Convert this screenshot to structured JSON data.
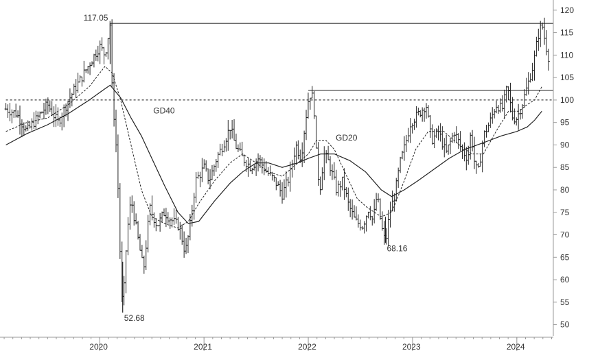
{
  "chart_data": {
    "type": "line",
    "subtype": "ohlc-bars-with-moving-averages",
    "title": "",
    "xlabel": "",
    "ylabel": "",
    "x_axis": {
      "ticks": [
        "2020",
        "2021",
        "2022",
        "2023",
        "2024"
      ],
      "range": [
        "2019.1",
        "2024.4"
      ]
    },
    "y_axis": {
      "side": "right",
      "ylim": [
        47.5,
        121.5
      ],
      "ticks": [
        50,
        55,
        60,
        65,
        70,
        75,
        80,
        85,
        90,
        95,
        100,
        105,
        110,
        115,
        120
      ]
    },
    "grid": false,
    "legend": "none",
    "colors": {
      "price": "#222222",
      "ma": "#222222",
      "axis": "#999999",
      "text": "#333333"
    },
    "price_path": [
      [
        2019.1,
        98
      ],
      [
        2019.2,
        97
      ],
      [
        2019.3,
        93
      ],
      [
        2019.4,
        96
      ],
      [
        2019.5,
        99
      ],
      [
        2019.6,
        95
      ],
      [
        2019.7,
        100
      ],
      [
        2019.8,
        104
      ],
      [
        2019.9,
        108
      ],
      [
        2020.0,
        112
      ],
      [
        2020.05,
        110
      ],
      [
        2020.1,
        117.05
      ],
      [
        2020.12,
        101
      ],
      [
        2020.15,
        93
      ],
      [
        2020.18,
        78
      ],
      [
        2020.2,
        62
      ],
      [
        2020.22,
        52.68
      ],
      [
        2020.26,
        70
      ],
      [
        2020.3,
        78
      ],
      [
        2020.36,
        70
      ],
      [
        2020.42,
        62
      ],
      [
        2020.48,
        76
      ],
      [
        2020.55,
        72
      ],
      [
        2020.62,
        75
      ],
      [
        2020.7,
        73
      ],
      [
        2020.76,
        72
      ],
      [
        2020.82,
        66
      ],
      [
        2020.86,
        71
      ],
      [
        2020.92,
        82
      ],
      [
        2021.0,
        85
      ],
      [
        2021.05,
        82
      ],
      [
        2021.12,
        87
      ],
      [
        2021.2,
        91
      ],
      [
        2021.25,
        94
      ],
      [
        2021.3,
        90
      ],
      [
        2021.37,
        87
      ],
      [
        2021.45,
        85
      ],
      [
        2021.52,
        87
      ],
      [
        2021.6,
        84
      ],
      [
        2021.68,
        82
      ],
      [
        2021.75,
        79
      ],
      [
        2021.82,
        83
      ],
      [
        2021.88,
        90
      ],
      [
        2021.93,
        87
      ],
      [
        2021.97,
        95
      ],
      [
        2022.0,
        100
      ],
      [
        2022.03,
        102
      ],
      [
        2022.06,
        97
      ],
      [
        2022.08,
        86
      ],
      [
        2022.11,
        80
      ],
      [
        2022.15,
        88
      ],
      [
        2022.2,
        86
      ],
      [
        2022.27,
        80
      ],
      [
        2022.33,
        82
      ],
      [
        2022.38,
        77
      ],
      [
        2022.45,
        73
      ],
      [
        2022.52,
        72
      ],
      [
        2022.58,
        76
      ],
      [
        2022.62,
        73
      ],
      [
        2022.66,
        79
      ],
      [
        2022.7,
        72
      ],
      [
        2022.74,
        68.16
      ],
      [
        2022.78,
        75
      ],
      [
        2022.83,
        79
      ],
      [
        2022.88,
        86
      ],
      [
        2022.93,
        90
      ],
      [
        2022.98,
        95
      ],
      [
        2023.06,
        97
      ],
      [
        2023.13,
        99
      ],
      [
        2023.18,
        91
      ],
      [
        2023.25,
        93
      ],
      [
        2023.32,
        88
      ],
      [
        2023.4,
        93
      ],
      [
        2023.47,
        89
      ],
      [
        2023.53,
        87
      ],
      [
        2023.56,
        93
      ],
      [
        2023.6,
        85
      ],
      [
        2023.63,
        84
      ],
      [
        2023.68,
        92
      ],
      [
        2023.74,
        95
      ],
      [
        2023.8,
        99
      ],
      [
        2023.86,
        98
      ],
      [
        2023.91,
        103
      ],
      [
        2023.96,
        96
      ],
      [
        2024.0,
        96
      ],
      [
        2024.05,
        99
      ],
      [
        2024.1,
        103
      ],
      [
        2024.16,
        108
      ],
      [
        2024.2,
        114
      ],
      [
        2024.24,
        117
      ],
      [
        2024.28,
        112
      ],
      [
        2024.31,
        109
      ]
    ],
    "series": [
      {
        "name": "GD20",
        "points": [
          [
            2019.1,
            93
          ],
          [
            2019.3,
            95
          ],
          [
            2019.5,
            96
          ],
          [
            2019.7,
            99
          ],
          [
            2019.9,
            103
          ],
          [
            2020.05,
            107.5
          ],
          [
            2020.12,
            106
          ],
          [
            2020.2,
            100
          ],
          [
            2020.3,
            90
          ],
          [
            2020.4,
            80
          ],
          [
            2020.5,
            74
          ],
          [
            2020.62,
            72.5
          ],
          [
            2020.75,
            71.5
          ],
          [
            2020.85,
            73
          ],
          [
            2020.95,
            77
          ],
          [
            2021.1,
            82
          ],
          [
            2021.25,
            86
          ],
          [
            2021.37,
            88
          ],
          [
            2021.5,
            86
          ],
          [
            2021.62,
            84
          ],
          [
            2021.75,
            83
          ],
          [
            2021.9,
            86
          ],
          [
            2022.0,
            88
          ],
          [
            2022.08,
            91
          ],
          [
            2022.17,
            91
          ],
          [
            2022.25,
            89
          ],
          [
            2022.35,
            84
          ],
          [
            2022.47,
            78
          ],
          [
            2022.57,
            76
          ],
          [
            2022.7,
            74
          ],
          [
            2022.8,
            75
          ],
          [
            2022.92,
            82
          ],
          [
            2023.03,
            89
          ],
          [
            2023.15,
            93
          ],
          [
            2023.3,
            93
          ],
          [
            2023.45,
            90
          ],
          [
            2023.57,
            88
          ],
          [
            2023.68,
            88
          ],
          [
            2023.8,
            93
          ],
          [
            2023.92,
            97.5
          ],
          [
            2024.02,
            97.5
          ],
          [
            2024.1,
            99
          ],
          [
            2024.17,
            100
          ],
          [
            2024.24,
            103
          ]
        ]
      },
      {
        "name": "GD40",
        "points": [
          [
            2019.1,
            90
          ],
          [
            2019.3,
            92.5
          ],
          [
            2019.5,
            94.5
          ],
          [
            2019.7,
            97
          ],
          [
            2019.9,
            100
          ],
          [
            2020.05,
            102.5
          ],
          [
            2020.1,
            103.3
          ],
          [
            2020.2,
            100.5
          ],
          [
            2020.3,
            96
          ],
          [
            2020.4,
            92
          ],
          [
            2020.5,
            87
          ],
          [
            2020.62,
            81
          ],
          [
            2020.75,
            75
          ],
          [
            2020.85,
            72.5
          ],
          [
            2020.95,
            73
          ],
          [
            2021.1,
            77.5
          ],
          [
            2021.25,
            81.5
          ],
          [
            2021.37,
            84
          ],
          [
            2021.5,
            86
          ],
          [
            2021.62,
            86
          ],
          [
            2021.75,
            85
          ],
          [
            2021.9,
            86
          ],
          [
            2022.0,
            87
          ],
          [
            2022.12,
            88
          ],
          [
            2022.25,
            88
          ],
          [
            2022.4,
            86.5
          ],
          [
            2022.55,
            84
          ],
          [
            2022.7,
            80
          ],
          [
            2022.8,
            78.5
          ],
          [
            2022.92,
            80
          ],
          [
            2023.05,
            82
          ],
          [
            2023.2,
            84.5
          ],
          [
            2023.35,
            87
          ],
          [
            2023.5,
            89
          ],
          [
            2023.68,
            90.5
          ],
          [
            2023.85,
            92
          ],
          [
            2024.0,
            93
          ],
          [
            2024.1,
            94
          ],
          [
            2024.17,
            95.5
          ],
          [
            2024.24,
            97.5
          ]
        ]
      }
    ],
    "reference_lines": [
      {
        "value": 117.05,
        "style": "solid",
        "from_x": 2020.1
      },
      {
        "value": 102.2,
        "style": "solid",
        "from_x": 2022.0
      },
      {
        "value": 100,
        "style": "dashed",
        "from_x": 2019.1
      }
    ],
    "annotations": [
      {
        "text": "117.05",
        "x": 2020.1,
        "y": 117.05,
        "anchor": "left-of-point"
      },
      {
        "text": "52.68",
        "x": 2020.22,
        "y": 52.68,
        "anchor": "below-right"
      },
      {
        "text": "68.16",
        "x": 2022.74,
        "y": 68.16,
        "anchor": "below-right"
      },
      {
        "text": "GD40",
        "x": 2020.5,
        "y": 97,
        "anchor": "label"
      },
      {
        "text": "GD20",
        "x": 2022.25,
        "y": 91,
        "anchor": "label"
      }
    ]
  }
}
